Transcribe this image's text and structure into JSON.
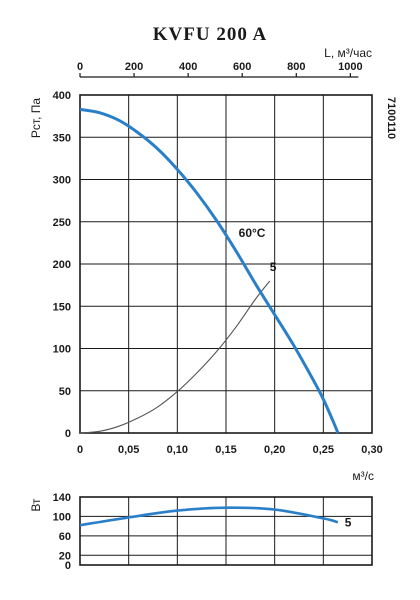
{
  "chart_data": [
    {
      "type": "line",
      "title": "KVFU 200 A",
      "xlabel": "м³/с",
      "ylabel": "Рст, Па",
      "xlim": [
        0,
        0.3
      ],
      "ylim": [
        0,
        400
      ],
      "x_ticks": [
        "0",
        "0,05",
        "0,10",
        "0,15",
        "0,20",
        "0,25",
        "0,30"
      ],
      "y_ticks": [
        "0",
        "50",
        "100",
        "150",
        "200",
        "250",
        "300",
        "350",
        "400"
      ],
      "secondary_x_axis": {
        "label": "L, м³/час",
        "ticks": [
          "0",
          "200",
          "400",
          "600",
          "800",
          "1000"
        ],
        "values": [
          0,
          200,
          400,
          600,
          800,
          1000
        ]
      },
      "side_code": "7100110",
      "grid": true,
      "colors": {
        "fan_curve": "#2a7fc9",
        "system_curve": "#555555"
      },
      "series": [
        {
          "name": "60°C",
          "x": [
            0,
            0.02,
            0.04,
            0.06,
            0.08,
            0.1,
            0.12,
            0.14,
            0.16,
            0.18,
            0.2,
            0.22,
            0.24,
            0.25,
            0.26,
            0.265
          ],
          "y": [
            383,
            379,
            370,
            355,
            336,
            312,
            284,
            252,
            216,
            177,
            140,
            103,
            62,
            40,
            14,
            0
          ]
        },
        {
          "name": "5",
          "x": [
            0,
            0.02,
            0.04,
            0.06,
            0.08,
            0.1,
            0.12,
            0.14,
            0.16,
            0.18,
            0.195
          ],
          "y": [
            0,
            2,
            8,
            18,
            31,
            49,
            71,
            96,
            125,
            158,
            180
          ]
        }
      ]
    },
    {
      "type": "line",
      "xlabel": "",
      "ylabel": "Вт",
      "xlim": [
        0,
        0.3
      ],
      "ylim": [
        0,
        140
      ],
      "y_ticks": [
        "0",
        "20",
        "60",
        "100",
        "140"
      ],
      "y_tick_values": [
        0,
        20,
        60,
        100,
        140
      ],
      "colors": {
        "power_curve": "#2a7fc9"
      },
      "series": [
        {
          "name": "5",
          "x": [
            0,
            0.05,
            0.1,
            0.15,
            0.2,
            0.25,
            0.265
          ],
          "y": [
            82,
            98,
            112,
            118,
            114,
            96,
            88
          ]
        }
      ]
    }
  ]
}
